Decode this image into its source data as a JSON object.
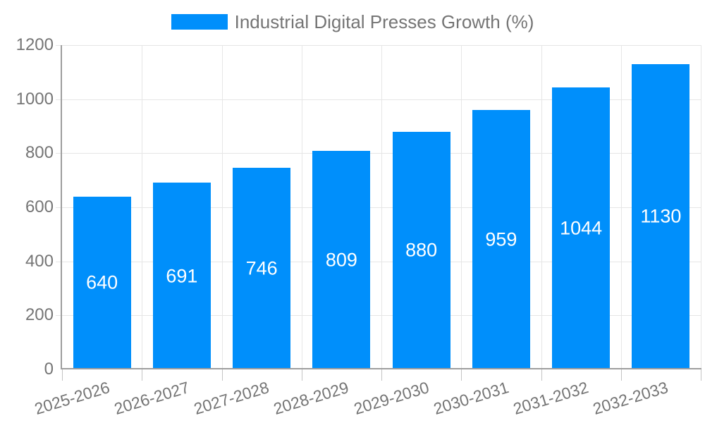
{
  "legend": {
    "label": "Industrial Digital Presses Growth (%)"
  },
  "colors": {
    "bar": "#008FFB",
    "text": "#757575",
    "grid": "#e6e6e6",
    "axis": "#9e9e9e",
    "tick": "#c4c4c4",
    "value_label": "#ffffff",
    "background": "#ffffff"
  },
  "chart_data": {
    "type": "bar",
    "title": "Industrial Digital Presses Growth (%)",
    "categories": [
      "2025-2026",
      "2026-2027",
      "2027-2028",
      "2028-2029",
      "2029-2030",
      "2030-2031",
      "2031-2032",
      "2032-2033"
    ],
    "series": [
      {
        "name": "Industrial Digital Presses Growth (%)",
        "values": [
          640,
          691,
          746,
          809,
          880,
          959,
          1044,
          1130
        ]
      }
    ],
    "xlabel": "",
    "ylabel": "",
    "ylim": [
      0,
      1200
    ],
    "yticks": [
      0,
      200,
      400,
      600,
      800,
      1000,
      1200
    ],
    "grid": {
      "horizontal": true,
      "vertical": true
    },
    "legend_position": "top",
    "data_labels": {
      "visible": true,
      "position": "center-of-bar",
      "color": "#ffffff"
    },
    "x_label_rotation_deg": -17
  }
}
